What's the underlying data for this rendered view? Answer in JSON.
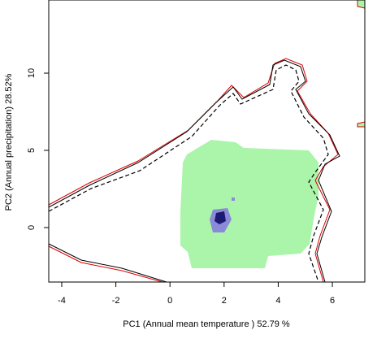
{
  "chart_data": {
    "type": "density",
    "x_label": "PC1 (Annual mean temperature ) 52.79 %",
    "y_label": "PC2 (Annual precipitation) 28.52%",
    "xlim": [
      -4.48,
      7.2
    ],
    "ylim": [
      -3.53,
      14.74
    ],
    "xticks": [
      -4,
      -2,
      0,
      2,
      4,
      6
    ],
    "yticks": [
      0,
      5,
      10
    ]
  }
}
